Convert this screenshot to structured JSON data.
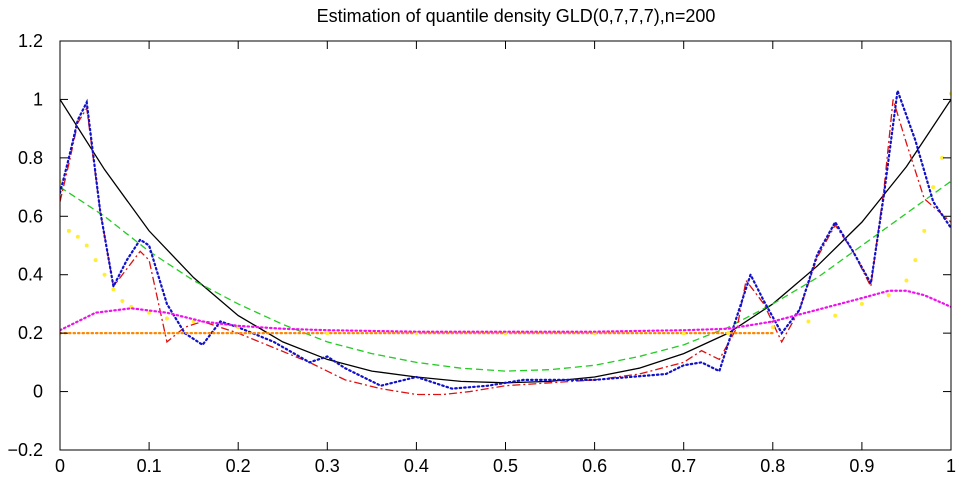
{
  "chart_data": {
    "type": "line",
    "title": "Estimation of quantile density GLD(0,7,7,7),n=200",
    "xlabel": "",
    "ylabel": "",
    "xlim": [
      0,
      1
    ],
    "ylim": [
      -0.2,
      1.2
    ],
    "x_ticks": [
      "0",
      "0.1",
      "0.2",
      "0.3",
      "0.4",
      "0.5",
      "0.6",
      "0.7",
      "0.8",
      "0.9",
      "1"
    ],
    "y_ticks": [
      "−0.2",
      "0",
      "0.2",
      "0.4",
      "0.6",
      "0.8",
      "1",
      "1.2"
    ],
    "grid": false,
    "legend": "none",
    "series": [
      {
        "style": "solid",
        "color": "#000000",
        "x": [
          0,
          0.05,
          0.1,
          0.15,
          0.2,
          0.25,
          0.3,
          0.35,
          0.4,
          0.45,
          0.5,
          0.55,
          0.6,
          0.65,
          0.7,
          0.75,
          0.8,
          0.85,
          0.9,
          0.95,
          1
        ],
        "y": [
          1.0,
          0.76,
          0.55,
          0.39,
          0.26,
          0.17,
          0.11,
          0.07,
          0.05,
          0.035,
          0.03,
          0.035,
          0.05,
          0.08,
          0.13,
          0.2,
          0.3,
          0.43,
          0.58,
          0.77,
          1.0
        ]
      },
      {
        "style": "dashed",
        "color": "#22cc22",
        "x": [
          0,
          0.05,
          0.1,
          0.15,
          0.2,
          0.25,
          0.3,
          0.35,
          0.4,
          0.45,
          0.5,
          0.55,
          0.6,
          0.65,
          0.7,
          0.75,
          0.8,
          0.85,
          0.9,
          0.95,
          1
        ],
        "y": [
          0.7,
          0.6,
          0.48,
          0.38,
          0.3,
          0.23,
          0.17,
          0.13,
          0.1,
          0.08,
          0.07,
          0.075,
          0.09,
          0.12,
          0.16,
          0.22,
          0.3,
          0.39,
          0.5,
          0.61,
          0.72
        ]
      },
      {
        "style": "dashdot",
        "color": "#dd1111",
        "x": [
          0,
          0.01,
          0.02,
          0.03,
          0.045,
          0.06,
          0.075,
          0.09,
          0.1,
          0.12,
          0.14,
          0.16,
          0.18,
          0.2,
          0.24,
          0.28,
          0.32,
          0.36,
          0.4,
          0.43,
          0.46,
          0.5,
          0.55,
          0.6,
          0.65,
          0.7,
          0.72,
          0.74,
          0.76,
          0.77,
          0.79,
          0.81,
          0.83,
          0.85,
          0.87,
          0.89,
          0.91,
          0.925,
          0.935,
          0.95,
          0.97,
          1
        ],
        "y": [
          0.65,
          0.78,
          0.92,
          0.97,
          0.62,
          0.36,
          0.42,
          0.48,
          0.45,
          0.17,
          0.22,
          0.24,
          0.22,
          0.2,
          0.15,
          0.1,
          0.04,
          0.01,
          -0.01,
          -0.01,
          0.0,
          0.02,
          0.03,
          0.04,
          0.06,
          0.1,
          0.14,
          0.11,
          0.22,
          0.38,
          0.3,
          0.17,
          0.28,
          0.46,
          0.57,
          0.48,
          0.36,
          0.7,
          1.0,
          0.85,
          0.66,
          0.58
        ]
      },
      {
        "style": "dotted",
        "color": "#1111cc",
        "x": [
          0,
          0.01,
          0.02,
          0.03,
          0.045,
          0.06,
          0.075,
          0.09,
          0.1,
          0.12,
          0.14,
          0.16,
          0.18,
          0.2,
          0.24,
          0.28,
          0.3,
          0.32,
          0.36,
          0.4,
          0.44,
          0.48,
          0.52,
          0.56,
          0.6,
          0.64,
          0.68,
          0.7,
          0.72,
          0.74,
          0.76,
          0.775,
          0.79,
          0.81,
          0.83,
          0.85,
          0.87,
          0.89,
          0.91,
          0.925,
          0.94,
          0.96,
          0.98,
          1
        ],
        "y": [
          0.68,
          0.8,
          0.93,
          0.99,
          0.62,
          0.36,
          0.45,
          0.52,
          0.5,
          0.3,
          0.2,
          0.16,
          0.24,
          0.22,
          0.17,
          0.1,
          0.12,
          0.08,
          0.02,
          0.05,
          0.01,
          0.02,
          0.04,
          0.04,
          0.04,
          0.05,
          0.06,
          0.09,
          0.1,
          0.07,
          0.26,
          0.4,
          0.31,
          0.2,
          0.28,
          0.47,
          0.58,
          0.48,
          0.37,
          0.68,
          1.03,
          0.86,
          0.65,
          0.56
        ]
      },
      {
        "style": "dotted",
        "color": "#ff8800",
        "x": [
          0,
          0.1,
          0.2,
          0.3,
          0.4,
          0.5,
          0.6,
          0.7,
          0.8
        ],
        "y": [
          0.2,
          0.2,
          0.2,
          0.2,
          0.2,
          0.2,
          0.2,
          0.2,
          0.2
        ]
      },
      {
        "style": "points",
        "color": "#ffee33",
        "x": [
          0,
          0.01,
          0.02,
          0.03,
          0.04,
          0.05,
          0.06,
          0.07,
          0.08,
          0.1,
          0.12,
          0.15,
          0.2,
          0.3,
          0.4,
          0.5,
          0.6,
          0.7,
          0.75,
          0.8,
          0.84,
          0.87,
          0.9,
          0.93,
          0.95,
          0.96,
          0.97,
          0.98,
          0.99,
          1
        ],
        "y": [
          0.72,
          0.55,
          0.53,
          0.5,
          0.45,
          0.4,
          0.35,
          0.31,
          0.29,
          0.27,
          0.25,
          0.24,
          0.22,
          0.2,
          0.2,
          0.2,
          0.2,
          0.2,
          0.2,
          0.22,
          0.24,
          0.26,
          0.3,
          0.33,
          0.38,
          0.45,
          0.55,
          0.7,
          0.8,
          1.02
        ]
      },
      {
        "style": "dotted",
        "color": "#ee11ee",
        "x": [
          0,
          0.04,
          0.08,
          0.12,
          0.16,
          0.2,
          0.25,
          0.3,
          0.4,
          0.5,
          0.6,
          0.7,
          0.75,
          0.8,
          0.85,
          0.9,
          0.93,
          0.95,
          0.97,
          1
        ],
        "y": [
          0.21,
          0.27,
          0.285,
          0.27,
          0.24,
          0.225,
          0.215,
          0.21,
          0.205,
          0.205,
          0.205,
          0.21,
          0.215,
          0.24,
          0.28,
          0.32,
          0.345,
          0.345,
          0.33,
          0.29
        ]
      }
    ]
  }
}
